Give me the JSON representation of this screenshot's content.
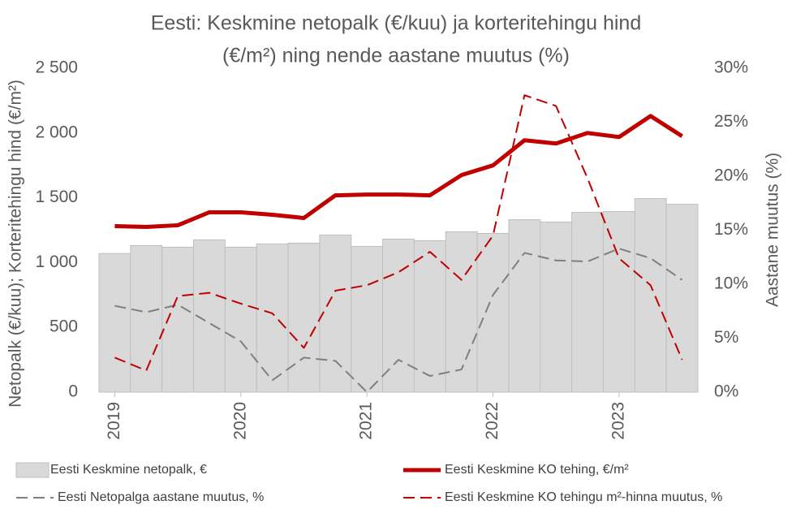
{
  "chart_data": {
    "type": "bar",
    "title": [
      "Eesti: Keskmine netopalk (€/kuu) ja korteritehingu hind",
      "(€/m²) ning nende aastane muutus (%)"
    ],
    "ylabel": "Netopalk (€/kuu); Korteritehingu hind (€/m²)",
    "y2label": "Aastane muutus (%)",
    "categories": [
      "2019",
      null,
      null,
      null,
      "2020",
      null,
      null,
      null,
      "2021",
      null,
      null,
      null,
      "2022",
      null,
      null,
      null,
      "2023",
      null,
      null
    ],
    "ylim": [
      0,
      2500
    ],
    "yticks": [
      0,
      500,
      {
        "value": 1000,
        "label": "1 000"
      },
      {
        "value": 1500,
        "label": "1 500"
      },
      {
        "value": 2000,
        "label": "2 000"
      },
      {
        "value": 2500,
        "label": "2 500"
      }
    ],
    "y2lim": [
      0,
      30
    ],
    "y2ticks": [
      {
        "value": 0,
        "label": "0%"
      },
      {
        "value": 5,
        "label": "5%"
      },
      {
        "value": 10,
        "label": "10%"
      },
      {
        "value": 15,
        "label": "15%"
      },
      {
        "value": 20,
        "label": "20%"
      },
      {
        "value": 25,
        "label": "25%"
      },
      {
        "value": 30,
        "label": "30%"
      }
    ],
    "series": [
      {
        "name": "Eesti Keskmine netopalk, €",
        "type": "bar",
        "color": "#d9d9d9",
        "values": [
          1070,
          1131,
          1119,
          1175,
          1119,
          1144,
          1150,
          1213,
          1125,
          1181,
          1169,
          1238,
          1225,
          1331,
          1313,
          1388,
          1394,
          1494,
          1450
        ]
      },
      {
        "name": "Eesti Keskmine KO tehing, €/m²",
        "type": "line",
        "color": "#c00000",
        "dash": false,
        "values": [
          1281,
          1275,
          1288,
          1388,
          1388,
          1369,
          1344,
          1519,
          1525,
          1525,
          1519,
          1675,
          1750,
          1944,
          1919,
          2000,
          1969,
          2131,
          1975
        ]
      },
      {
        "name": "Eesti Netopalga aastane muutus, %",
        "type": "line",
        "color": "#7f7f7f",
        "dash": true,
        "axis": "y2",
        "values": [
          8.0,
          7.4,
          8.1,
          6.4,
          4.7,
          1.1,
          3.2,
          2.9,
          0,
          3.0,
          1.5,
          2.1,
          9.0,
          12.9,
          12.2,
          12.1,
          13.3,
          12.4,
          10.4
        ]
      },
      {
        "name": "Eesti Keskmine KO tehingu m²-hinna muutus, %",
        "type": "line",
        "color": "#c00000",
        "dash": true,
        "axis": "y2",
        "values": [
          3.2,
          2.0,
          8.9,
          9.2,
          8.2,
          7.3,
          4.1,
          9.4,
          9.9,
          11.1,
          13.0,
          10.4,
          14.5,
          27.5,
          26.5,
          19.8,
          12.4,
          9.9,
          3.0
        ]
      }
    ]
  }
}
